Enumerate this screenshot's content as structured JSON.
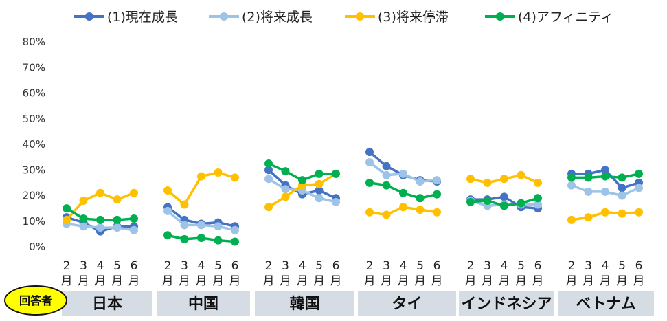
{
  "chart_data": {
    "type": "line",
    "ylim": [
      0,
      80
    ],
    "y_ticks": [
      "0%",
      "10%",
      "20%",
      "30%",
      "40%",
      "50%",
      "60%",
      "70%",
      "80%"
    ],
    "grid": false,
    "legend_position": "top",
    "respondent_label": "回答者",
    "months": [
      "2\n月",
      "3\n月",
      "4\n月",
      "5\n月",
      "6\n月"
    ],
    "series": [
      {
        "name": "(1)現在成長",
        "color": "#4472C4"
      },
      {
        "name": "(2)将来成長",
        "color": "#9DC3E6"
      },
      {
        "name": "(3)将来停滞",
        "color": "#FFC000"
      },
      {
        "name": "(4)アフィニティ",
        "color": "#00B050"
      }
    ],
    "groups": [
      {
        "label": "日本",
        "values": [
          [
            11.5,
            9.5,
            6,
            8,
            8
          ],
          [
            9,
            8,
            7.5,
            7.5,
            6.5
          ],
          [
            10.5,
            18,
            21,
            18.5,
            21
          ],
          [
            15,
            11,
            10.5,
            10.5,
            11
          ]
        ]
      },
      {
        "label": "中国",
        "values": [
          [
            15.5,
            10.5,
            9,
            9.5,
            8
          ],
          [
            14,
            8.5,
            8.5,
            8,
            6.5
          ],
          [
            22,
            16.5,
            27.5,
            29,
            27
          ],
          [
            4.5,
            3,
            3.5,
            2.5,
            2
          ]
        ]
      },
      {
        "label": "韓国",
        "values": [
          [
            30,
            24,
            20.5,
            22,
            19
          ],
          [
            26.5,
            22.5,
            22,
            19,
            17.5
          ],
          [
            15.5,
            19.5,
            24,
            24.5,
            28.5
          ],
          [
            32.5,
            29.5,
            26,
            28.5,
            28.5
          ]
        ]
      },
      {
        "label": "タイ",
        "values": [
          [
            37,
            31.5,
            28,
            26,
            25.5
          ],
          [
            33,
            28,
            28.5,
            25.5,
            26
          ],
          [
            13.5,
            12.5,
            15.5,
            14.5,
            13.5
          ],
          [
            25,
            24,
            21,
            19,
            20.5
          ]
        ]
      },
      {
        "label": "インドネシア",
        "values": [
          [
            18.5,
            18.5,
            19.5,
            15.5,
            15
          ],
          [
            18,
            16,
            16.5,
            16.5,
            16.5
          ],
          [
            26.5,
            25,
            26.5,
            28,
            25
          ],
          [
            17.5,
            18,
            16,
            17,
            19
          ]
        ]
      },
      {
        "label": "ベトナム",
        "values": [
          [
            28.5,
            28.5,
            30,
            23,
            25
          ],
          [
            24,
            21.5,
            21.5,
            20,
            23
          ],
          [
            10.5,
            11.5,
            13.5,
            13,
            13.5
          ],
          [
            27,
            27,
            27.5,
            27,
            28.5
          ]
        ]
      }
    ]
  }
}
